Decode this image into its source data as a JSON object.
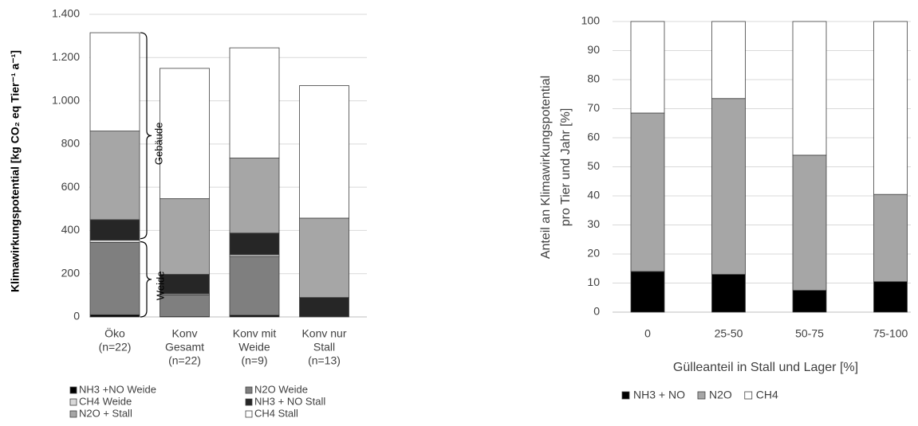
{
  "chart_data": [
    {
      "type": "stacked_bar",
      "y_label": "Klimawirkungspotential [kg CO₂ eq Tier⁻¹ a⁻¹]",
      "categories": [
        [
          "Öko",
          "(n=22)"
        ],
        [
          "Konv",
          "Gesamt",
          "(n=22)"
        ],
        [
          "Konv mit",
          "Weide",
          "(n=9)"
        ],
        [
          "Konv nur",
          "Stall",
          "(n=13)"
        ]
      ],
      "series": [
        {
          "name": "NH3 +NO Weide",
          "color": "#000000",
          "values": [
            10,
            2,
            8,
            0
          ]
        },
        {
          "name": "N2O Weide",
          "color": "#7f7f7f",
          "values": [
            335,
            100,
            272,
            0
          ]
        },
        {
          "name": "CH4 Weide",
          "color": "#d9d9d9",
          "values": [
            10,
            5,
            8,
            0
          ]
        },
        {
          "name": "NH3 + NO Stall",
          "color": "#262626",
          "values": [
            95,
            90,
            100,
            90
          ]
        },
        {
          "name": "N2O + Stall",
          "color": "#a6a6a6",
          "values": [
            410,
            350,
            347,
            367
          ]
        },
        {
          "name": "CH4 Stall",
          "color": "#ffffff",
          "values": [
            455,
            603,
            510,
            613
          ]
        }
      ],
      "ylim": [
        0,
        1400
      ],
      "yticks": [
        0,
        200,
        400,
        600,
        800,
        {
          "value": 1000,
          "label": "1.000"
        },
        {
          "value": 1200,
          "label": "1.200"
        },
        {
          "value": 1400,
          "label": "1.400"
        }
      ],
      "grid": true,
      "annotations": [
        "Gebäude",
        "Weide"
      ]
    },
    {
      "type": "stacked_bar",
      "y_label": [
        "Anteil an Klimawirkungspotential",
        "pro Tier und Jahr  [%]"
      ],
      "x_label": "Gülleanteil in Stall und Lager [%]",
      "categories": [
        "0",
        "25-50",
        "50-75",
        "75-100"
      ],
      "series": [
        {
          "name": "NH3 + NO",
          "color": "#000000",
          "values": [
            14,
            13,
            7.5,
            10.5
          ]
        },
        {
          "name": "N2O",
          "color": "#a6a6a6",
          "values": [
            54.5,
            60.5,
            46.5,
            30
          ]
        },
        {
          "name": "CH4",
          "color": "#ffffff",
          "values": [
            31.5,
            26.5,
            46,
            59.5
          ]
        }
      ],
      "ylim": [
        0,
        100
      ],
      "yticks": [
        0,
        10,
        20,
        30,
        40,
        50,
        60,
        70,
        80,
        90,
        100
      ],
      "grid": true
    }
  ]
}
